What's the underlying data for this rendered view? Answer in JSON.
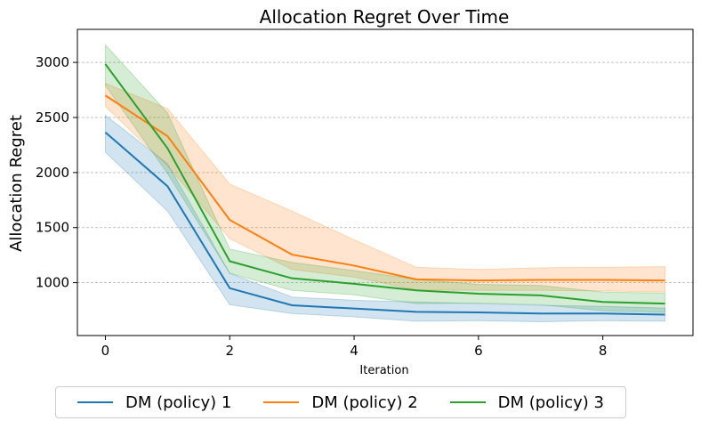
{
  "chart_data": {
    "type": "line",
    "title": "Allocation Regret Over Time",
    "xlabel": "Iteration",
    "ylabel": "Allocation Regret",
    "x": [
      0,
      1,
      2,
      3,
      4,
      5,
      6,
      7,
      8,
      9
    ],
    "xlim": [
      -0.45,
      9.45
    ],
    "ylim": [
      520,
      3300
    ],
    "xticks": [
      0,
      2,
      4,
      6,
      8
    ],
    "yticks": [
      1000,
      1500,
      2000,
      2500,
      3000
    ],
    "grid": "horizontal dashed",
    "legend_placement": "bottom",
    "series": [
      {
        "name": "DM (policy) 1",
        "color": "#1f77b4",
        "values": [
          2365,
          1875,
          950,
          795,
          765,
          735,
          730,
          720,
          720,
          710
        ],
        "lower": [
          2185,
          1650,
          800,
          720,
          690,
          650,
          655,
          645,
          655,
          650
        ],
        "upper": [
          2520,
          2080,
          1085,
          870,
          840,
          825,
          810,
          795,
          785,
          770
        ]
      },
      {
        "name": "DM (policy) 2",
        "color": "#ff7f0e",
        "values": [
          2700,
          2330,
          1570,
          1255,
          1155,
          1030,
          1020,
          1025,
          1025,
          1020
        ],
        "lower": [
          2600,
          2060,
          1400,
          1120,
          1050,
          935,
          930,
          930,
          925,
          915
        ],
        "upper": [
          2810,
          2580,
          1895,
          1650,
          1390,
          1140,
          1120,
          1135,
          1140,
          1145
        ]
      },
      {
        "name": "DM (policy) 3",
        "color": "#2ca02c",
        "values": [
          2985,
          2220,
          1195,
          1040,
          990,
          930,
          900,
          885,
          825,
          810
        ],
        "lower": [
          2790,
          1990,
          1085,
          930,
          890,
          810,
          815,
          800,
          745,
          730
        ],
        "upper": [
          3160,
          2540,
          1305,
          1185,
          1110,
          1030,
          985,
          975,
          915,
          905
        ]
      }
    ]
  }
}
